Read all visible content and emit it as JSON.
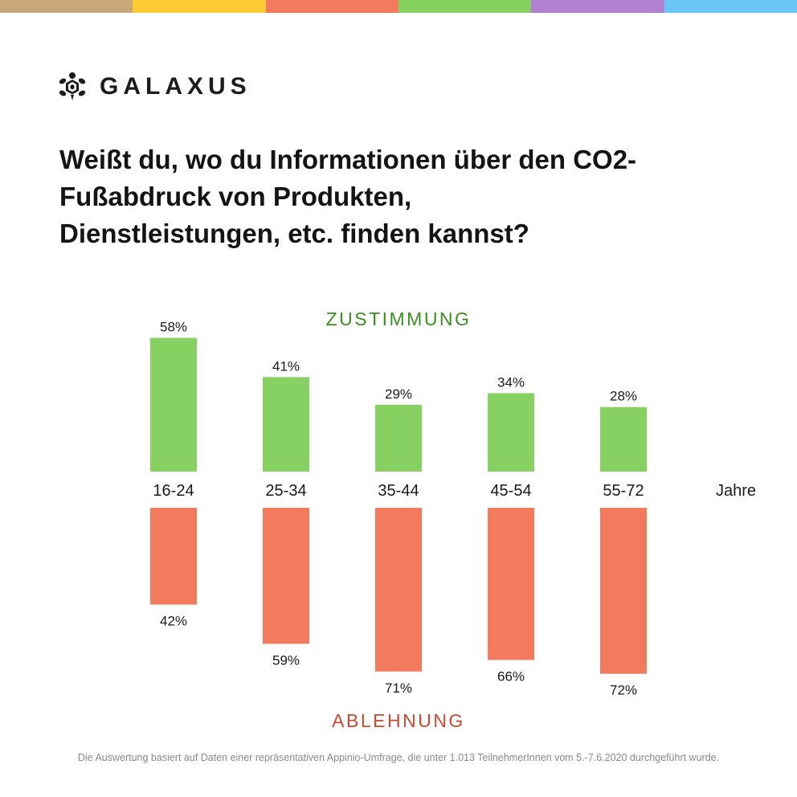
{
  "topbar": {
    "colors": [
      "#c8a77a",
      "#fdcc35",
      "#f47a5e",
      "#86d162",
      "#b180d1",
      "#6cc5f7"
    ]
  },
  "header": {
    "logo_icon": "turtle-icon",
    "brand": "GALAXUS"
  },
  "title": "Weißt du, wo du Informationen über den CO2-Fußabdruck von Produkten, Dienstleistungen, etc. finden kannst?",
  "chart_data": {
    "type": "bar",
    "categories": [
      "16-24",
      "25-34",
      "35-44",
      "45-54",
      "55-72"
    ],
    "category_unit_label": "Jahre",
    "series": [
      {
        "name": "ZUSTIMMUNG",
        "values": [
          58,
          41,
          29,
          34,
          28
        ],
        "color": "#86d162",
        "label_color": "#3a8f1e",
        "direction": "up"
      },
      {
        "name": "ABLEHNUNG",
        "values": [
          42,
          59,
          71,
          66,
          72
        ],
        "color": "#f47a5e",
        "label_color": "#c94a32",
        "direction": "down"
      }
    ],
    "value_suffix": "%",
    "ylim": [
      0,
      100
    ],
    "grid": false,
    "legend_placement": "top-center (ZUSTIMMUNG) / bottom-center (ABLEHNUNG)"
  },
  "footnote": "Die Auswertung basiert auf Daten einer repräsentativen Appinio-Umfrage, die unter 1.013 TeilnehmerInnen vom 5.-7.6.2020 durchgeführt wurde."
}
